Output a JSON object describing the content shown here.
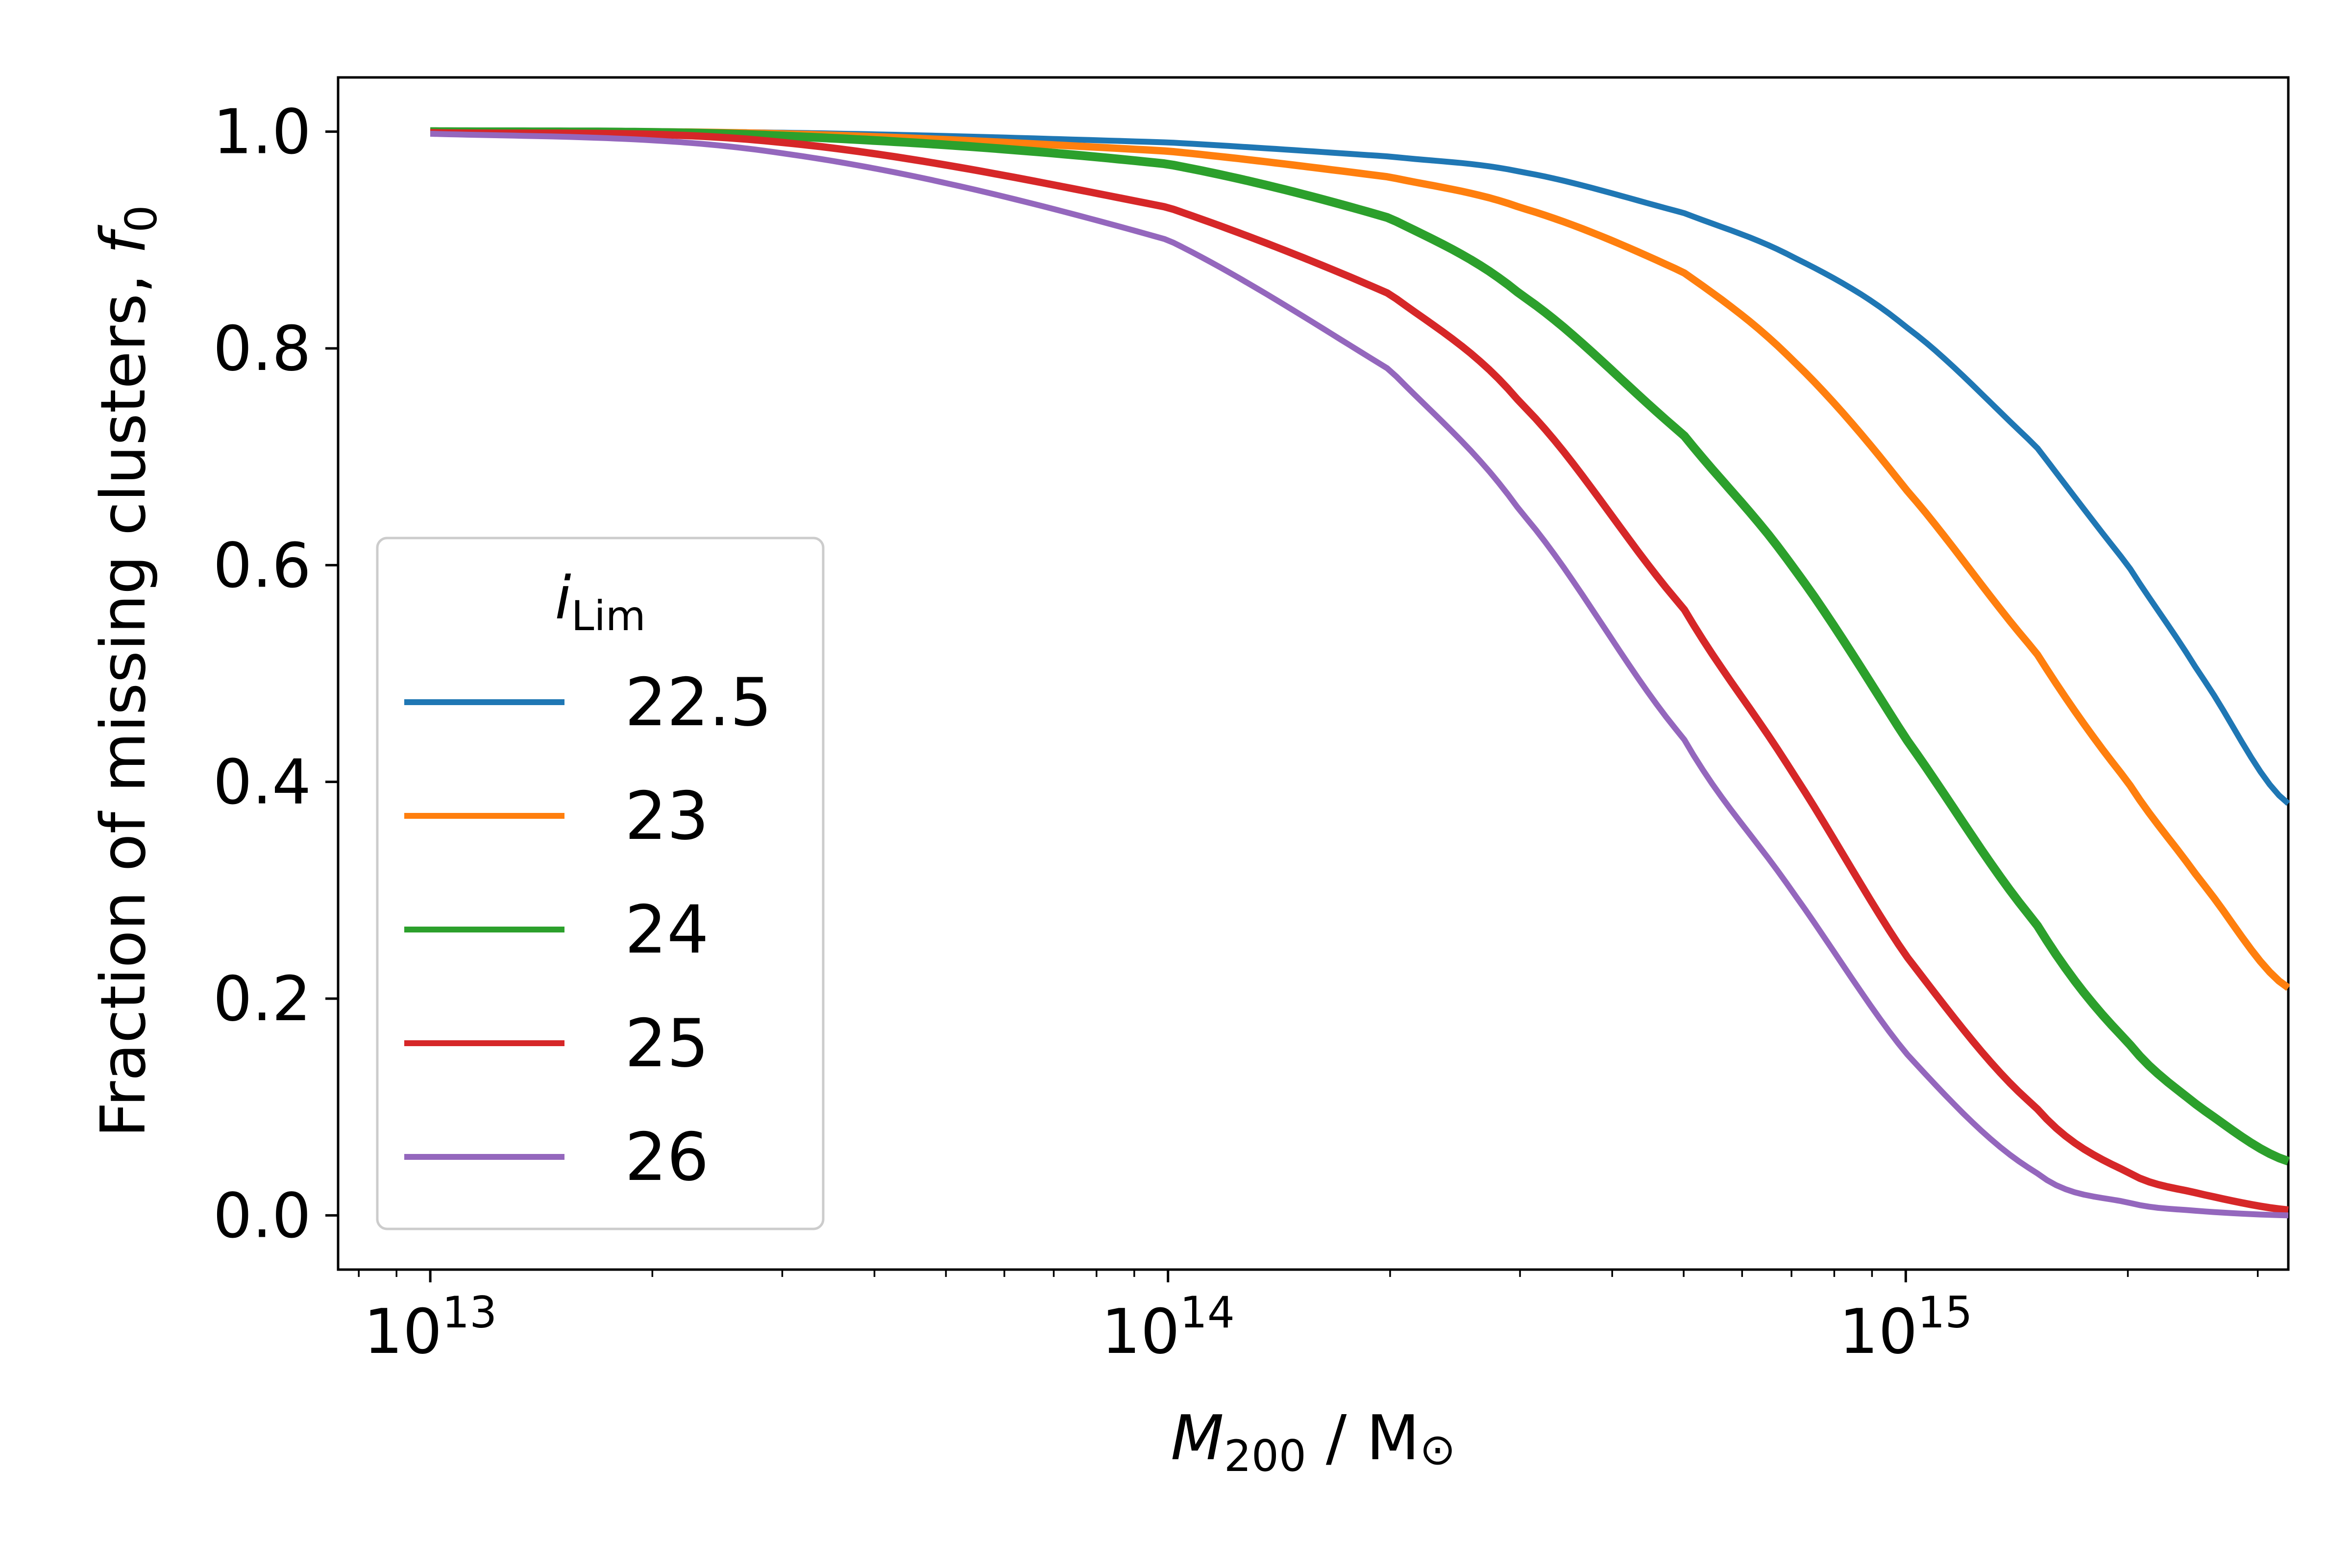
{
  "chart_data": {
    "type": "line",
    "xscale": "log",
    "xlim": [
      7500000000000.0,
      3300000000000000.0
    ],
    "ylim": [
      -0.05,
      1.05
    ],
    "ylabel": {
      "text": "Fraction of missing clusters, ",
      "var": "f",
      "sub": "0"
    },
    "xlabel": {
      "var": "M",
      "sub": "200",
      "text": " / M",
      "sym": "⊙"
    },
    "x_ticks": [
      {
        "value": 10000000000000.0,
        "base": "10",
        "exp": "13"
      },
      {
        "value": 100000000000000.0,
        "base": "10",
        "exp": "14"
      },
      {
        "value": 1000000000000000.0,
        "base": "10",
        "exp": "15"
      }
    ],
    "y_ticks": [
      {
        "value": 0.0,
        "label": "0.0"
      },
      {
        "value": 0.2,
        "label": "0.2"
      },
      {
        "value": 0.4,
        "label": "0.4"
      },
      {
        "value": 0.6,
        "label": "0.6"
      },
      {
        "value": 0.8,
        "label": "0.8"
      },
      {
        "value": 1.0,
        "label": "1.0"
      }
    ],
    "legend": {
      "title": {
        "var": "i",
        "sub": "Lim"
      },
      "position": "lower-left"
    },
    "x": [
      10000000000000.0,
      30000000000000.0,
      100000000000000.0,
      200000000000000.0,
      300000000000000.0,
      500000000000000.0,
      700000000000000.0,
      1000000000000000.0,
      1500000000000000.0,
      2000000000000000.0,
      2500000000000000.0,
      3300000000000000.0
    ],
    "series": [
      {
        "name": "22.5",
        "color": "#1f77b4",
        "width": 1.0,
        "values": [
          1.0,
          0.999,
          0.99,
          0.977,
          0.963,
          0.925,
          0.885,
          0.82,
          0.71,
          0.6,
          0.5,
          0.38
        ]
      },
      {
        "name": "23",
        "color": "#ff7f0e",
        "width": 1.25,
        "values": [
          1.0,
          0.998,
          0.982,
          0.958,
          0.93,
          0.87,
          0.79,
          0.67,
          0.52,
          0.4,
          0.31,
          0.21
        ]
      },
      {
        "name": "24",
        "color": "#2ca02c",
        "width": 1.5,
        "values": [
          1.0,
          0.996,
          0.97,
          0.92,
          0.85,
          0.72,
          0.6,
          0.44,
          0.27,
          0.16,
          0.1,
          0.05
        ]
      },
      {
        "name": "25",
        "color": "#d62728",
        "width": 1.25,
        "values": [
          0.999,
          0.99,
          0.93,
          0.85,
          0.75,
          0.56,
          0.41,
          0.24,
          0.1,
          0.04,
          0.02,
          0.005
        ]
      },
      {
        "name": "26",
        "color": "#9467bd",
        "width": 1.0,
        "values": [
          0.998,
          0.98,
          0.9,
          0.78,
          0.65,
          0.44,
          0.3,
          0.15,
          0.04,
          0.012,
          0.004,
          0.0
        ]
      }
    ]
  }
}
